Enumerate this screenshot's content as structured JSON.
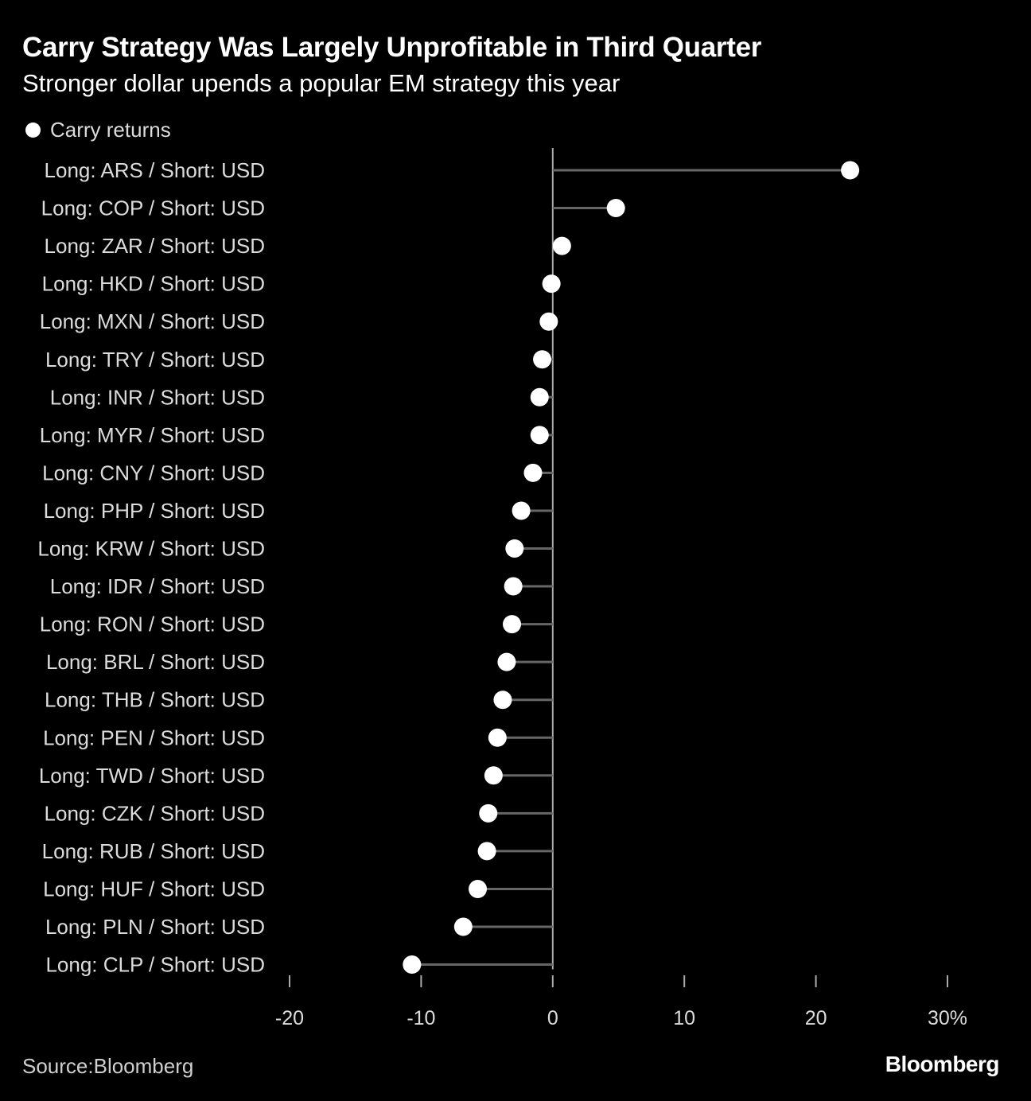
{
  "header": {
    "title": "Carry Strategy Was Largely Unprofitable in Third Quarter",
    "subtitle": "Stronger dollar upends a popular EM strategy this year"
  },
  "legend": {
    "label": "Carry returns"
  },
  "footer": {
    "source": "Source:Bloomberg",
    "brand": "Bloomberg"
  },
  "colors": {
    "background": "#000000",
    "dot": "#ffffff",
    "stem": "#666666",
    "axis": "#aaaaaa",
    "text": "#dcdcdc"
  },
  "chart_data": {
    "type": "lollipop",
    "title": "Carry Strategy Was Largely Unprofitable in Third Quarter",
    "subtitle": "Stronger dollar upends a popular EM strategy this year",
    "xlabel": "",
    "ylabel": "",
    "unit": "%",
    "xlim": [
      -20,
      30
    ],
    "xticks": [
      -20,
      -10,
      0,
      10,
      20,
      30
    ],
    "xtick_labels": [
      "-20",
      "-10",
      "0",
      "10",
      "20",
      "30%"
    ],
    "grid": false,
    "legend": "top-left",
    "series": [
      {
        "name": "Carry returns",
        "categories": [
          "Long: ARS / Short: USD",
          "Long: COP / Short: USD",
          "Long: ZAR / Short: USD",
          "Long: HKD / Short: USD",
          "Long: MXN / Short: USD",
          "Long: TRY / Short: USD",
          "Long: INR / Short: USD",
          "Long: MYR / Short: USD",
          "Long: CNY / Short: USD",
          "Long: PHP / Short: USD",
          "Long: KRW / Short: USD",
          "Long: IDR / Short: USD",
          "Long: RON / Short: USD",
          "Long: BRL / Short: USD",
          "Long: THB / Short: USD",
          "Long: PEN / Short: USD",
          "Long: TWD / Short: USD",
          "Long: CZK / Short: USD",
          "Long: RUB / Short: USD",
          "Long: HUF / Short: USD",
          "Long: PLN / Short: USD",
          "Long: CLP / Short: USD"
        ],
        "values": [
          22.6,
          4.8,
          0.7,
          -0.1,
          -0.3,
          -0.8,
          -1.0,
          -1.0,
          -1.5,
          -2.4,
          -2.9,
          -3.0,
          -3.1,
          -3.5,
          -3.8,
          -4.2,
          -4.5,
          -4.9,
          -5.0,
          -5.7,
          -6.8,
          -10.7
        ]
      }
    ]
  }
}
